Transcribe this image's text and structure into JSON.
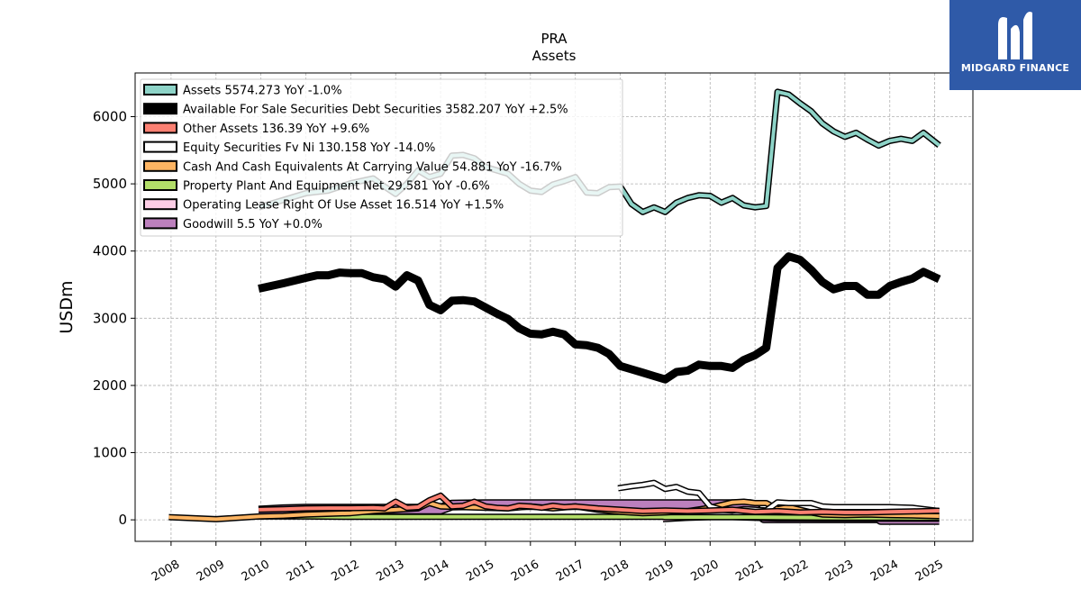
{
  "brand": {
    "name": "MIDGARD FINANCE",
    "color": "#2f5aa8"
  },
  "chart_data": {
    "type": "line",
    "title": "PRA",
    "subtitle": "Assets",
    "ylabel": "USDm",
    "xlabel": "",
    "xlim": [
      2007.2,
      2025.85
    ],
    "ylim": [
      -320,
      6650
    ],
    "grid": true,
    "legend_position": "top-left",
    "x_ticks": [
      "2008",
      "2009",
      "2010",
      "2011",
      "2012",
      "2013",
      "2014",
      "2015",
      "2016",
      "2017",
      "2018",
      "2019",
      "2020",
      "2021",
      "2022",
      "2023",
      "2024",
      "2025"
    ],
    "y_ticks": [
      "0",
      "1000",
      "2000",
      "3000",
      "4000",
      "5000",
      "6000"
    ],
    "series": [
      {
        "name": "Assets",
        "legend": "Assets  5574.273 YoY -1.0%",
        "color": "#8dd3c7",
        "outline": "#000000",
        "width": 4,
        "points": [
          [
            2009.95,
            4650
          ],
          [
            2010.5,
            4760
          ],
          [
            2011,
            4860
          ],
          [
            2011.5,
            4900
          ],
          [
            2012,
            5010
          ],
          [
            2012.5,
            5080
          ],
          [
            2012.75,
            4960
          ],
          [
            2013,
            4850
          ],
          [
            2013.25,
            5000
          ],
          [
            2013.5,
            5200
          ],
          [
            2013.75,
            5100
          ],
          [
            2014,
            5150
          ],
          [
            2014.25,
            5420
          ],
          [
            2014.5,
            5430
          ],
          [
            2014.75,
            5380
          ],
          [
            2015,
            5250
          ],
          [
            2015.5,
            5150
          ],
          [
            2015.75,
            5000
          ],
          [
            2016,
            4900
          ],
          [
            2016.25,
            4880
          ],
          [
            2016.5,
            4990
          ],
          [
            2016.75,
            5040
          ],
          [
            2017,
            5100
          ],
          [
            2017.25,
            4870
          ],
          [
            2017.5,
            4860
          ],
          [
            2017.75,
            4950
          ],
          [
            2018,
            4960
          ],
          [
            2018.25,
            4700
          ],
          [
            2018.5,
            4580
          ],
          [
            2018.75,
            4650
          ],
          [
            2019,
            4580
          ],
          [
            2019.25,
            4720
          ],
          [
            2019.5,
            4790
          ],
          [
            2019.75,
            4830
          ],
          [
            2020,
            4820
          ],
          [
            2020.25,
            4720
          ],
          [
            2020.5,
            4790
          ],
          [
            2020.75,
            4680
          ],
          [
            2021,
            4650
          ],
          [
            2021.25,
            4670
          ],
          [
            2021.5,
            6370
          ],
          [
            2021.75,
            6330
          ],
          [
            2022,
            6200
          ],
          [
            2022.25,
            6080
          ],
          [
            2022.5,
            5900
          ],
          [
            2022.75,
            5780
          ],
          [
            2023,
            5700
          ],
          [
            2023.25,
            5760
          ],
          [
            2023.5,
            5660
          ],
          [
            2023.75,
            5570
          ],
          [
            2024,
            5640
          ],
          [
            2024.25,
            5670
          ],
          [
            2024.5,
            5640
          ],
          [
            2024.75,
            5760
          ],
          [
            2025.1,
            5574
          ]
        ]
      },
      {
        "name": "Available For Sale Securities Debt Securities",
        "legend": "Available For Sale Securities Debt Securities  3582.207 YoY +2.5%",
        "color": "#000000",
        "outline": "#000000",
        "width": 9,
        "points": [
          [
            2009.95,
            3440
          ],
          [
            2010.5,
            3520
          ],
          [
            2011,
            3600
          ],
          [
            2011.25,
            3640
          ],
          [
            2011.5,
            3640
          ],
          [
            2011.75,
            3680
          ],
          [
            2012,
            3670
          ],
          [
            2012.25,
            3670
          ],
          [
            2012.5,
            3610
          ],
          [
            2012.75,
            3580
          ],
          [
            2013,
            3470
          ],
          [
            2013.25,
            3640
          ],
          [
            2013.5,
            3560
          ],
          [
            2013.75,
            3200
          ],
          [
            2014,
            3120
          ],
          [
            2014.25,
            3260
          ],
          [
            2014.5,
            3270
          ],
          [
            2014.75,
            3250
          ],
          [
            2015,
            3160
          ],
          [
            2015.25,
            3070
          ],
          [
            2015.5,
            2990
          ],
          [
            2015.75,
            2850
          ],
          [
            2016,
            2770
          ],
          [
            2016.25,
            2760
          ],
          [
            2016.5,
            2800
          ],
          [
            2016.75,
            2760
          ],
          [
            2017,
            2610
          ],
          [
            2017.25,
            2600
          ],
          [
            2017.5,
            2560
          ],
          [
            2017.75,
            2470
          ],
          [
            2018,
            2290
          ],
          [
            2018.25,
            2240
          ],
          [
            2018.5,
            2190
          ],
          [
            2018.75,
            2140
          ],
          [
            2019,
            2090
          ],
          [
            2019.25,
            2200
          ],
          [
            2019.5,
            2220
          ],
          [
            2019.75,
            2310
          ],
          [
            2020,
            2290
          ],
          [
            2020.25,
            2290
          ],
          [
            2020.5,
            2260
          ],
          [
            2020.75,
            2380
          ],
          [
            2021,
            2450
          ],
          [
            2021.25,
            2560
          ],
          [
            2021.5,
            3750
          ],
          [
            2021.75,
            3920
          ],
          [
            2022,
            3870
          ],
          [
            2022.25,
            3720
          ],
          [
            2022.5,
            3540
          ],
          [
            2022.75,
            3430
          ],
          [
            2023,
            3480
          ],
          [
            2023.25,
            3480
          ],
          [
            2023.5,
            3350
          ],
          [
            2023.75,
            3350
          ],
          [
            2024,
            3480
          ],
          [
            2024.25,
            3540
          ],
          [
            2024.5,
            3590
          ],
          [
            2024.75,
            3690
          ],
          [
            2025.1,
            3582
          ]
        ]
      },
      {
        "name": "Other Assets",
        "legend": "Other Assets  136.39 YoY +9.6%",
        "color": "#fb8072",
        "outline": "#000000",
        "width": 4,
        "points": [
          [
            2009.95,
            150
          ],
          [
            2010.5,
            160
          ],
          [
            2011,
            170
          ],
          [
            2011.5,
            175
          ],
          [
            2012,
            175
          ],
          [
            2012.5,
            180
          ],
          [
            2012.75,
            170
          ],
          [
            2013,
            270
          ],
          [
            2013.25,
            180
          ],
          [
            2013.5,
            190
          ],
          [
            2013.75,
            290
          ],
          [
            2014,
            360
          ],
          [
            2014.25,
            200
          ],
          [
            2014.5,
            210
          ],
          [
            2014.75,
            270
          ],
          [
            2015,
            200
          ],
          [
            2015.25,
            180
          ],
          [
            2015.5,
            170
          ],
          [
            2015.75,
            210
          ],
          [
            2016,
            200
          ],
          [
            2016.25,
            180
          ],
          [
            2016.5,
            210
          ],
          [
            2016.75,
            190
          ],
          [
            2017,
            200
          ],
          [
            2017.5,
            170
          ],
          [
            2018,
            150
          ],
          [
            2018.5,
            130
          ],
          [
            2019,
            140
          ],
          [
            2019.5,
            130
          ],
          [
            2020,
            140
          ],
          [
            2020.5,
            150
          ],
          [
            2021,
            120
          ],
          [
            2021.5,
            130
          ],
          [
            2022,
            110
          ],
          [
            2022.5,
            120
          ],
          [
            2023,
            110
          ],
          [
            2023.5,
            110
          ],
          [
            2024,
            120
          ],
          [
            2024.5,
            125
          ],
          [
            2025.1,
            136
          ]
        ]
      },
      {
        "name": "Equity Securities Fv Ni",
        "legend": "Equity Securities Fv Ni  130.158 YoY -14.0%",
        "color": "#ffffff",
        "outline": "#000000",
        "width": 4,
        "points": [
          [
            2017.95,
            470
          ],
          [
            2018.25,
            500
          ],
          [
            2018.5,
            520
          ],
          [
            2018.75,
            550
          ],
          [
            2019,
            460
          ],
          [
            2019.25,
            490
          ],
          [
            2019.5,
            420
          ],
          [
            2019.75,
            400
          ],
          [
            2020,
            200
          ],
          [
            2020.25,
            150
          ],
          [
            2020.5,
            140
          ],
          [
            2020.75,
            160
          ],
          [
            2021,
            150
          ],
          [
            2021.25,
            140
          ],
          [
            2021.5,
            260
          ],
          [
            2021.75,
            250
          ],
          [
            2022,
            250
          ],
          [
            2022.25,
            250
          ],
          [
            2022.5,
            200
          ],
          [
            2022.75,
            190
          ],
          [
            2023,
            190
          ],
          [
            2023.5,
            190
          ],
          [
            2024,
            190
          ],
          [
            2024.5,
            180
          ],
          [
            2025.1,
            130
          ]
        ]
      },
      {
        "name": "Cash And Cash Equivalents At Carrying Value",
        "legend": "Cash And Cash Equivalents At Carrying Value  54.881 YoY -16.7%",
        "color": "#fdb462",
        "outline": "#000000",
        "width": 4,
        "points": [
          [
            2007.95,
            40
          ],
          [
            2009,
            10
          ],
          [
            2009.95,
            50
          ],
          [
            2010.5,
            60
          ],
          [
            2011,
            80
          ],
          [
            2012,
            100
          ],
          [
            2012.5,
            130
          ],
          [
            2013,
            150
          ],
          [
            2013.5,
            170
          ],
          [
            2013.75,
            250
          ],
          [
            2014,
            200
          ],
          [
            2014.5,
            190
          ],
          [
            2015,
            180
          ],
          [
            2015.5,
            170
          ],
          [
            2016,
            200
          ],
          [
            2016.5,
            170
          ],
          [
            2017,
            200
          ],
          [
            2017.5,
            150
          ],
          [
            2018,
            120
          ],
          [
            2018.5,
            100
          ],
          [
            2019,
            110
          ],
          [
            2019.5,
            130
          ],
          [
            2020,
            180
          ],
          [
            2020.25,
            220
          ],
          [
            2020.5,
            260
          ],
          [
            2020.75,
            270
          ],
          [
            2021,
            250
          ],
          [
            2021.25,
            250
          ],
          [
            2021.5,
            160
          ],
          [
            2021.75,
            190
          ],
          [
            2022,
            150
          ],
          [
            2022.25,
            110
          ],
          [
            2022.5,
            80
          ],
          [
            2023,
            70
          ],
          [
            2023.5,
            80
          ],
          [
            2024,
            70
          ],
          [
            2024.5,
            65
          ],
          [
            2025.1,
            55
          ]
        ]
      },
      {
        "name": "Property Plant And Equipment Net",
        "legend": "Property Plant And Equipment Net  29.581 YoY -0.6%",
        "color": "#b3de69",
        "outline": "#000000",
        "width": 4,
        "points": [
          [
            2009.95,
            50
          ],
          [
            2011,
            50
          ],
          [
            2012,
            45
          ],
          [
            2013,
            45
          ],
          [
            2014,
            45
          ],
          [
            2015,
            45
          ],
          [
            2016,
            45
          ],
          [
            2017,
            45
          ],
          [
            2018,
            45
          ],
          [
            2018.95,
            45
          ],
          [
            2019,
            40
          ],
          [
            2020,
            40
          ],
          [
            2021,
            40
          ],
          [
            2022,
            35
          ],
          [
            2023,
            32
          ],
          [
            2024,
            31
          ],
          [
            2025.1,
            29.6
          ]
        ]
      },
      {
        "name": "Operating Lease Right Of Use Asset",
        "legend": "Operating Lease Right Of Use Asset  16.514 YoY +1.5%",
        "color": "#fccde5",
        "outline": "#000000",
        "width": 4,
        "points": [
          [
            2018.95,
            10
          ],
          [
            2019.5,
            30
          ],
          [
            2020,
            40
          ],
          [
            2020.5,
            40
          ],
          [
            2021,
            30
          ],
          [
            2021.5,
            20
          ],
          [
            2022,
            20
          ],
          [
            2022.5,
            18
          ],
          [
            2023,
            18
          ],
          [
            2024,
            17
          ],
          [
            2025.1,
            16.5
          ]
        ]
      },
      {
        "name": "Goodwill",
        "legend": "Goodwill  5.5 YoY +0.0%",
        "color": "#bc80bd",
        "outline": "#000000",
        "width": 9,
        "points": [
          [
            2009.95,
            130
          ],
          [
            2010.5,
            150
          ],
          [
            2011,
            160
          ],
          [
            2012,
            160
          ],
          [
            2013,
            160
          ],
          [
            2014,
            160
          ],
          [
            2014.25,
            220
          ],
          [
            2015,
            225
          ],
          [
            2016,
            225
          ],
          [
            2017,
            225
          ],
          [
            2018,
            225
          ],
          [
            2019,
            225
          ],
          [
            2020,
            225
          ],
          [
            2020.75,
            225
          ],
          [
            2020.9,
            225
          ],
          [
            2021.2,
            30
          ],
          [
            2022,
            30
          ],
          [
            2023,
            30
          ],
          [
            2023.75,
            30
          ],
          [
            2023.8,
            5.5
          ],
          [
            2024,
            5.5
          ],
          [
            2025.1,
            5.5
          ]
        ]
      }
    ]
  }
}
